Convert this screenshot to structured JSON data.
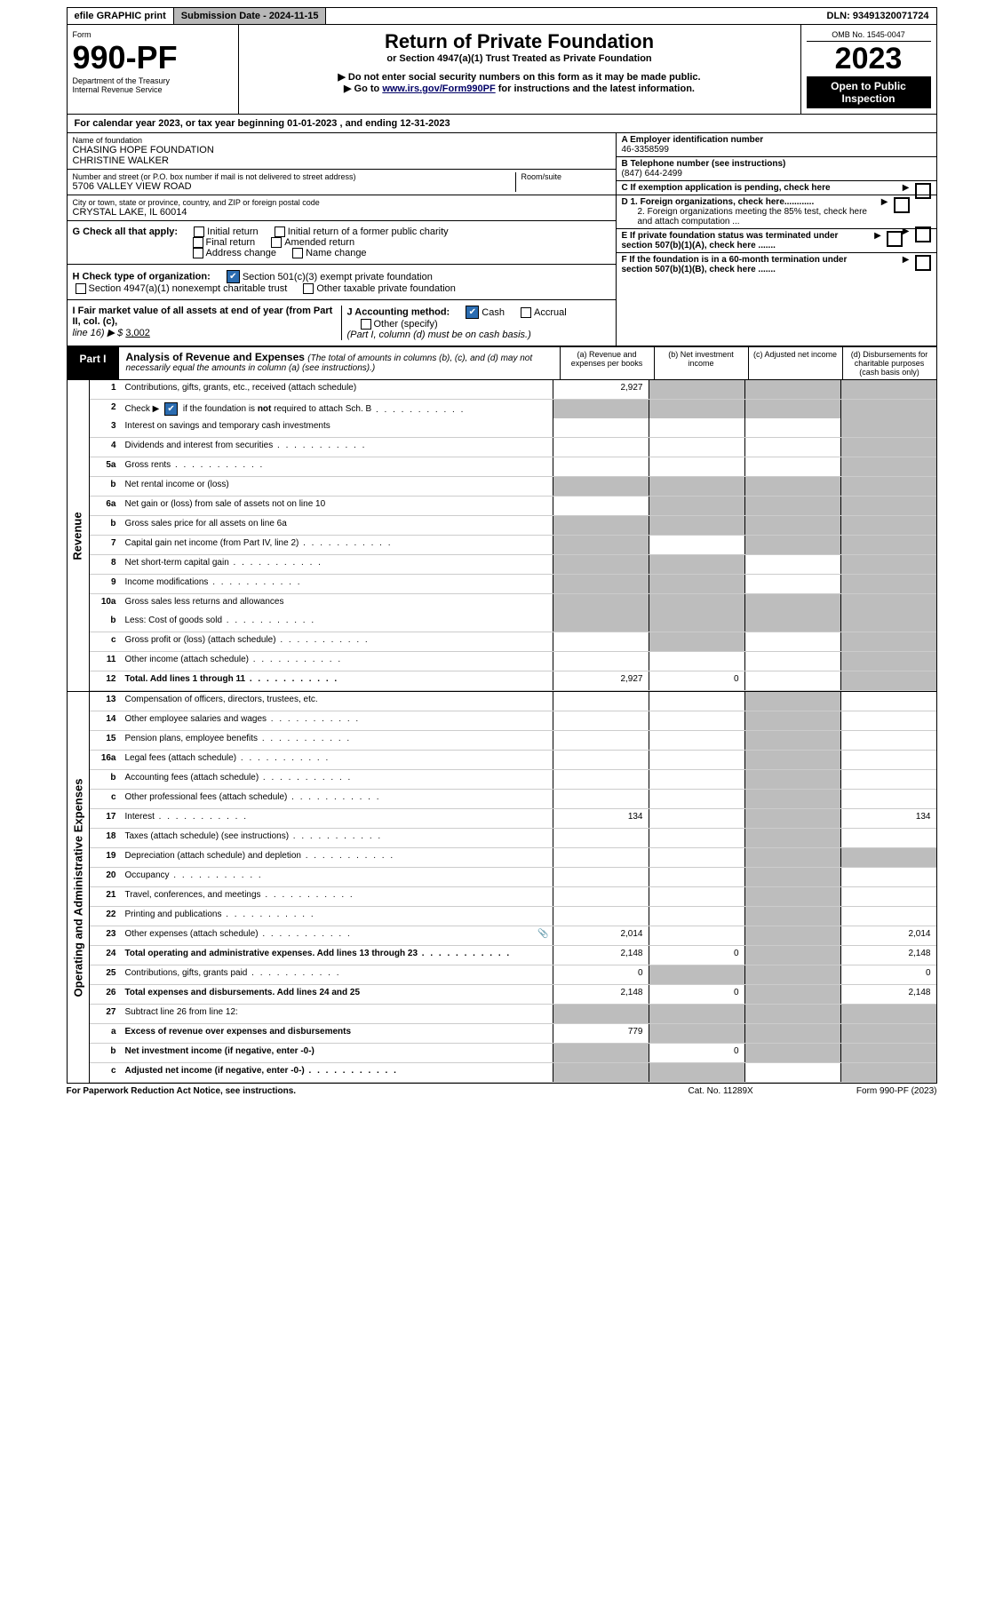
{
  "top": {
    "efile": "efile GRAPHIC print",
    "sub_label": "Submission Date - 2024-11-15",
    "dln": "DLN: 93491320071724"
  },
  "hdr": {
    "form_label": "Form",
    "form_num": "990-PF",
    "dept": "Department of the Treasury",
    "irs": "Internal Revenue Service",
    "title": "Return of Private Foundation",
    "subtitle": "or Section 4947(a)(1) Trust Treated as Private Foundation",
    "note1": "▶ Do not enter social security numbers on this form as it may be made public.",
    "note2_pre": "▶ Go to ",
    "note2_link": "www.irs.gov/Form990PF",
    "note2_post": " for instructions and the latest information.",
    "omb": "OMB No. 1545-0047",
    "year": "2023",
    "open": "Open to Public Inspection"
  },
  "calyear": "For calendar year 2023, or tax year beginning 01-01-2023                                         , and ending 12-31-2023",
  "id": {
    "name_lbl": "Name of foundation",
    "name1": "CHASING HOPE FOUNDATION",
    "name2": "CHRISTINE WALKER",
    "addr_lbl": "Number and street (or P.O. box number if mail is not delivered to street address)",
    "room_lbl": "Room/suite",
    "addr": "5706 VALLEY VIEW ROAD",
    "city_lbl": "City or town, state or province, country, and ZIP or foreign postal code",
    "city": "CRYSTAL LAKE, IL  60014",
    "a_lbl": "A Employer identification number",
    "a_val": "46-3358599",
    "b_lbl": "B Telephone number (see instructions)",
    "b_val": "(847) 644-2499",
    "c_lbl": "C If exemption application is pending, check here",
    "d1": "D 1. Foreign organizations, check here............",
    "d2": "2. Foreign organizations meeting the 85% test, check here and attach computation ...",
    "e_lbl": "E  If private foundation status was terminated under section 507(b)(1)(A), check here .......",
    "f_lbl": "F  If the foundation is in a 60-month termination under section 507(b)(1)(B), check here .......",
    "g_lbl": "G Check all that apply:",
    "g_initial": "Initial return",
    "g_initial_former": "Initial return of a former public charity",
    "g_final": "Final return",
    "g_amended": "Amended return",
    "g_addr": "Address change",
    "g_name": "Name change",
    "h_lbl": "H Check type of organization:",
    "h_501": "Section 501(c)(3) exempt private foundation",
    "h_4947": "Section 4947(a)(1) nonexempt charitable trust",
    "h_other": "Other taxable private foundation",
    "i_lbl": "I Fair market value of all assets at end of year (from Part II, col. (c),",
    "i_line": "line 16) ▶ $ ",
    "i_val": "3,002",
    "j_lbl": "J Accounting method:",
    "j_cash": "Cash",
    "j_accrual": "Accrual",
    "j_other": "Other (specify)",
    "j_note": "(Part I, column (d) must be on cash basis.)"
  },
  "part1": {
    "label": "Part I",
    "title": "Analysis of Revenue and Expenses ",
    "sub": "(The total of amounts in columns (b), (c), and (d) may not necessarily equal the amounts in column (a) (see instructions).)",
    "cols": {
      "a": "(a)   Revenue and expenses per books",
      "b": "(b)   Net investment income",
      "c": "(c)   Adjusted net income",
      "d": "(d)   Disbursements for charitable purposes (cash basis only)"
    }
  },
  "vlabels": {
    "rev": "Revenue",
    "exp": "Operating and Administrative Expenses"
  },
  "rows": [
    {
      "sec": "rev",
      "n": "1",
      "t": "Contributions, gifts, grants, etc., received (attach schedule)",
      "a": "2,927",
      "shade_b": true,
      "shade_c": true,
      "shade_d": true
    },
    {
      "sec": "rev",
      "n": "2",
      "t": "Check ▶ [x] if the foundation is not required to attach Sch. B",
      "dots": true,
      "shade_a": true,
      "shade_b": true,
      "shade_c": true,
      "shade_d": true,
      "nob": true
    },
    {
      "sec": "rev",
      "n": "3",
      "t": "Interest on savings and temporary cash investments",
      "shade_d": true
    },
    {
      "sec": "rev",
      "n": "4",
      "t": "Dividends and interest from securities",
      "dots": true,
      "shade_d": true
    },
    {
      "sec": "rev",
      "n": "5a",
      "t": "Gross rents",
      "dots": true,
      "shade_d": true
    },
    {
      "sec": "rev",
      "n": "b",
      "t": "Net rental income or (loss)",
      "shade_a": true,
      "shade_b": true,
      "shade_c": true,
      "shade_d": true
    },
    {
      "sec": "rev",
      "n": "6a",
      "t": "Net gain or (loss) from sale of assets not on line 10",
      "shade_b": true,
      "shade_c": true,
      "shade_d": true
    },
    {
      "sec": "rev",
      "n": "b",
      "t": "Gross sales price for all assets on line 6a",
      "shade_a": true,
      "shade_b": true,
      "shade_c": true,
      "shade_d": true
    },
    {
      "sec": "rev",
      "n": "7",
      "t": "Capital gain net income (from Part IV, line 2)",
      "dots": true,
      "shade_a": true,
      "shade_c": true,
      "shade_d": true
    },
    {
      "sec": "rev",
      "n": "8",
      "t": "Net short-term capital gain",
      "dots": true,
      "shade_a": true,
      "shade_b": true,
      "shade_d": true
    },
    {
      "sec": "rev",
      "n": "9",
      "t": "Income modifications",
      "dots": true,
      "shade_a": true,
      "shade_b": true,
      "shade_d": true
    },
    {
      "sec": "rev",
      "n": "10a",
      "t": "Gross sales less returns and allowances",
      "shade_a": true,
      "shade_b": true,
      "shade_c": true,
      "shade_d": true,
      "nob": true
    },
    {
      "sec": "rev",
      "n": "b",
      "t": "Less: Cost of goods sold",
      "dots": true,
      "shade_a": true,
      "shade_b": true,
      "shade_c": true,
      "shade_d": true
    },
    {
      "sec": "rev",
      "n": "c",
      "t": "Gross profit or (loss) (attach schedule)",
      "dots": true,
      "shade_b": true,
      "shade_d": true
    },
    {
      "sec": "rev",
      "n": "11",
      "t": "Other income (attach schedule)",
      "dots": true,
      "shade_d": true
    },
    {
      "sec": "rev",
      "n": "12",
      "t": "Total. Add lines 1 through 11",
      "dots": true,
      "bold": true,
      "a": "2,927",
      "b": "0",
      "shade_d": true
    },
    {
      "sec": "exp",
      "n": "13",
      "t": "Compensation of officers, directors, trustees, etc.",
      "shade_c": true
    },
    {
      "sec": "exp",
      "n": "14",
      "t": "Other employee salaries and wages",
      "dots": true,
      "shade_c": true
    },
    {
      "sec": "exp",
      "n": "15",
      "t": "Pension plans, employee benefits",
      "dots": true,
      "shade_c": true
    },
    {
      "sec": "exp",
      "n": "16a",
      "t": "Legal fees (attach schedule)",
      "dots": true,
      "shade_c": true
    },
    {
      "sec": "exp",
      "n": "b",
      "t": "Accounting fees (attach schedule)",
      "dots": true,
      "shade_c": true
    },
    {
      "sec": "exp",
      "n": "c",
      "t": "Other professional fees (attach schedule)",
      "dots": true,
      "shade_c": true
    },
    {
      "sec": "exp",
      "n": "17",
      "t": "Interest",
      "dots": true,
      "a": "134",
      "d": "134",
      "shade_c": true
    },
    {
      "sec": "exp",
      "n": "18",
      "t": "Taxes (attach schedule) (see instructions)",
      "dots": true,
      "shade_c": true
    },
    {
      "sec": "exp",
      "n": "19",
      "t": "Depreciation (attach schedule) and depletion",
      "dots": true,
      "shade_c": true,
      "shade_d": true
    },
    {
      "sec": "exp",
      "n": "20",
      "t": "Occupancy",
      "dots": true,
      "shade_c": true
    },
    {
      "sec": "exp",
      "n": "21",
      "t": "Travel, conferences, and meetings",
      "dots": true,
      "shade_c": true
    },
    {
      "sec": "exp",
      "n": "22",
      "t": "Printing and publications",
      "dots": true,
      "shade_c": true
    },
    {
      "sec": "exp",
      "n": "23",
      "t": "Other expenses (attach schedule)",
      "dots": true,
      "a": "2,014",
      "d": "2,014",
      "shade_c": true,
      "icon": true
    },
    {
      "sec": "exp",
      "n": "24",
      "t": "Total operating and administrative expenses. Add lines 13 through 23",
      "dots": true,
      "bold": true,
      "a": "2,148",
      "b": "0",
      "d": "2,148",
      "shade_c": true
    },
    {
      "sec": "exp",
      "n": "25",
      "t": "Contributions, gifts, grants paid",
      "dots": true,
      "a": "0",
      "d": "0",
      "shade_b": true,
      "shade_c": true
    },
    {
      "sec": "exp",
      "n": "26",
      "t": "Total expenses and disbursements. Add lines 24 and 25",
      "bold": true,
      "a": "2,148",
      "b": "0",
      "d": "2,148",
      "shade_c": true
    },
    {
      "sec": "exp",
      "n": "27",
      "t": "Subtract line 26 from line 12:",
      "shade_a": true,
      "shade_b": true,
      "shade_c": true,
      "shade_d": true
    },
    {
      "sec": "exp",
      "n": "a",
      "t": "Excess of revenue over expenses and disbursements",
      "bold": true,
      "a": "779",
      "shade_b": true,
      "shade_c": true,
      "shade_d": true
    },
    {
      "sec": "exp",
      "n": "b",
      "t": "Net investment income (if negative, enter -0-)",
      "bold": true,
      "b": "0",
      "shade_a": true,
      "shade_c": true,
      "shade_d": true
    },
    {
      "sec": "exp",
      "n": "c",
      "t": "Adjusted net income (if negative, enter -0-)",
      "dots": true,
      "bold": true,
      "shade_a": true,
      "shade_b": true,
      "shade_d": true
    }
  ],
  "footer": {
    "l": "For Paperwork Reduction Act Notice, see instructions.",
    "c": "Cat. No. 11289X",
    "r": "Form 990-PF (2023)"
  }
}
